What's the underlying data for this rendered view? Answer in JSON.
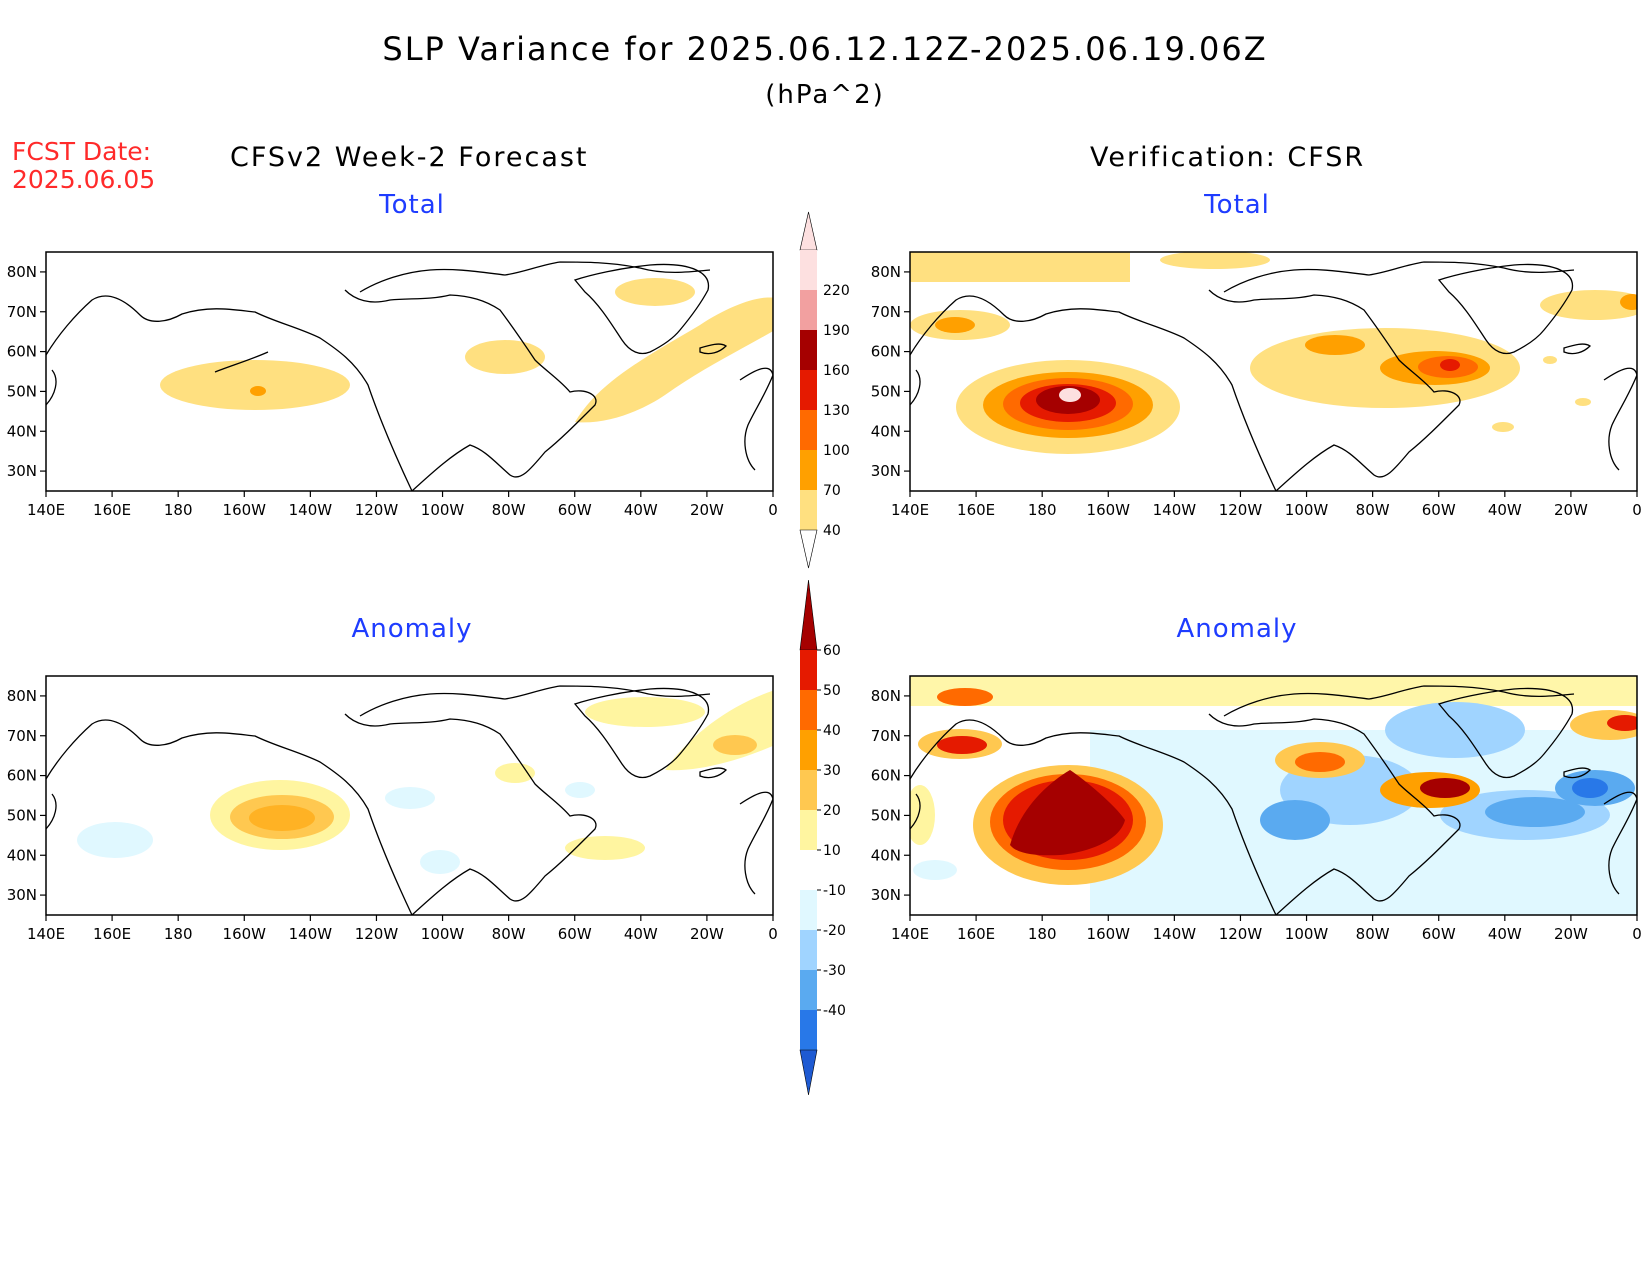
{
  "header": {
    "title": "SLP Variance for 2025.06.12.12Z-2025.06.19.06Z",
    "units": "(hPa^2)",
    "fcst_label": "FCST Date:",
    "fcst_date": "2025.06.05",
    "left_column": "CFSv2 Week-2 Forecast",
    "right_column": "Verification: CFSR"
  },
  "panels": {
    "top_left": {
      "title": "Total"
    },
    "top_right": {
      "title": "Total"
    },
    "bottom_left": {
      "title": "Anomaly"
    },
    "bottom_right": {
      "title": "Anomaly"
    }
  },
  "axes": {
    "lat_labels": [
      "80N",
      "70N",
      "60N",
      "50N",
      "40N",
      "30N"
    ],
    "lon_labels": [
      "140E",
      "160E",
      "180",
      "160W",
      "140W",
      "120W",
      "100W",
      "80W",
      "60W",
      "40W",
      "20W",
      "0"
    ],
    "lat_range": [
      25,
      85
    ],
    "lon_range_east": [
      140,
      360
    ]
  },
  "colorbars": {
    "total": {
      "labels": [
        "220",
        "190",
        "160",
        "130",
        "100",
        "70",
        "40"
      ],
      "colors": [
        "#fde0e0",
        "#f2a0a0",
        "#a50000",
        "#e51a00",
        "#ff6a00",
        "#ffa000",
        "#ffe080"
      ]
    },
    "anomaly": {
      "labels": [
        "60",
        "50",
        "40",
        "30",
        "20",
        "10",
        "-10",
        "-20",
        "-30",
        "-40"
      ],
      "colors": [
        "#a50000",
        "#e51a00",
        "#ff6a00",
        "#ffa000",
        "#ffc850",
        "#fff5a0",
        "#ffffff",
        "#e0f8ff",
        "#a0d4ff",
        "#5aaaf0",
        "#2878e8",
        "#1e5ad2"
      ]
    }
  },
  "colors": {
    "title_red": "#ff2a2a",
    "panel_title_blue": "#1e3cff"
  }
}
